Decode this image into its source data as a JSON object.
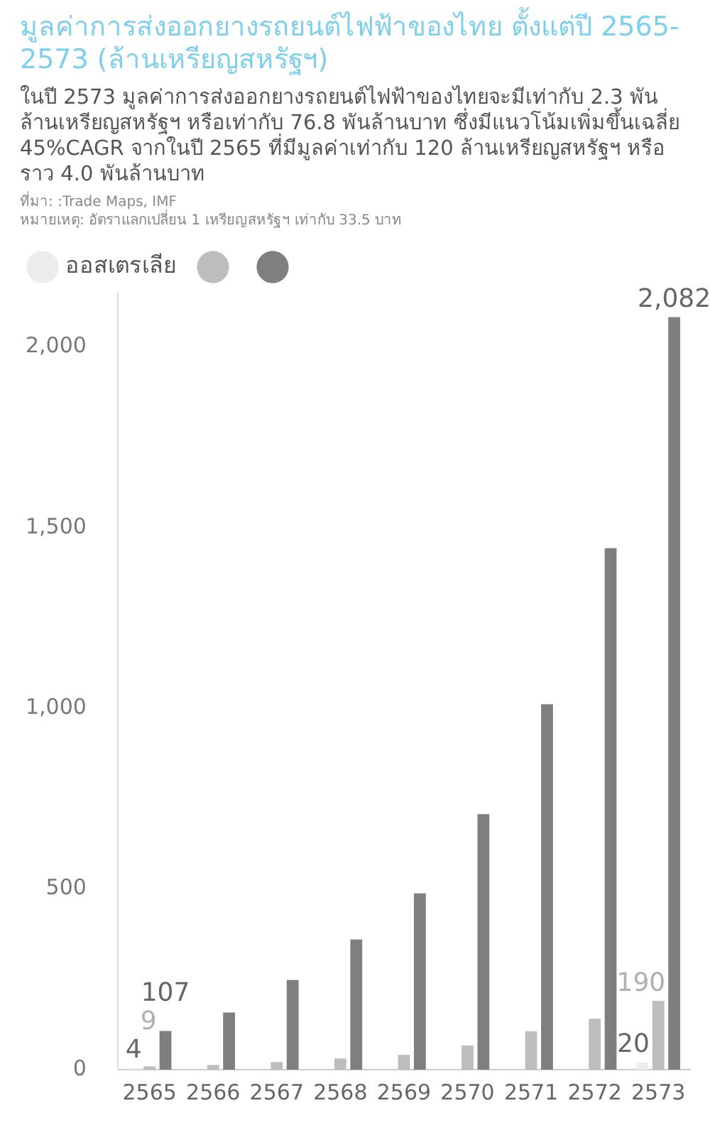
{
  "chart_data": {
    "type": "bar",
    "title": "มูลค่าการส่งออกยางรถยนต์ไฟฟ้าของไทย ตั้งแต่ปี 2565-2573 (ล้านเหรียญสหรัฐฯ)",
    "subtitle": "ในปี 2573 มูลค่าการส่งออกยางรถยนต์ไฟฟ้าของไทยจะมีเท่ากับ 2.3 พันล้านเหรียญสหรัฐฯ หรือเท่ากับ 76.8 พันล้านบาท ซึ่งมีแนวโน้มเพิ่มขึ้นเฉลี่ย 45%CAGR จากในปี 2565 ที่มีมูลค่าเท่ากับ 120 ล้านเหรียญสหรัฐฯ หรือราว 4.0 พันล้านบาท",
    "annotations": [
      "ที่มา: :Trade Maps, IMF",
      "หมายเหตุ: อัตราแลกเปลี่ยน 1 เหรียญสหรัฐฯ เท่ากับ 33.5 บาท"
    ],
    "categories": [
      "2565",
      "2566",
      "2567",
      "2568",
      "2569",
      "2570",
      "2571",
      "2572",
      "2573"
    ],
    "series": [
      {
        "name": "ออสเตรเลีย",
        "color": "#ececec",
        "values": [
          4,
          null,
          null,
          null,
          null,
          null,
          null,
          null,
          20
        ],
        "value_labels": [
          "4",
          null,
          null,
          null,
          null,
          null,
          null,
          null,
          "20"
        ]
      },
      {
        "color": "#bdbdbd",
        "values": [
          9,
          13,
          21,
          31,
          41,
          67,
          106,
          141,
          190
        ],
        "value_labels": [
          "9",
          null,
          null,
          null,
          null,
          null,
          null,
          null,
          "190"
        ]
      },
      {
        "color": "#7f7f7f",
        "values": [
          107,
          158,
          248,
          360,
          488,
          707,
          1011,
          1443,
          2082
        ],
        "value_labels": [
          "107",
          null,
          null,
          null,
          null,
          null,
          null,
          null,
          "2,082"
        ]
      }
    ],
    "ylim": [
      0,
      2150
    ],
    "yticks": [
      0,
      500,
      {
        "value": 1000,
        "label": "1,000"
      },
      {
        "value": 1500,
        "label": "1,500"
      },
      {
        "value": 2000,
        "label": "2,000"
      }
    ],
    "grid": false,
    "legend": "top left"
  }
}
